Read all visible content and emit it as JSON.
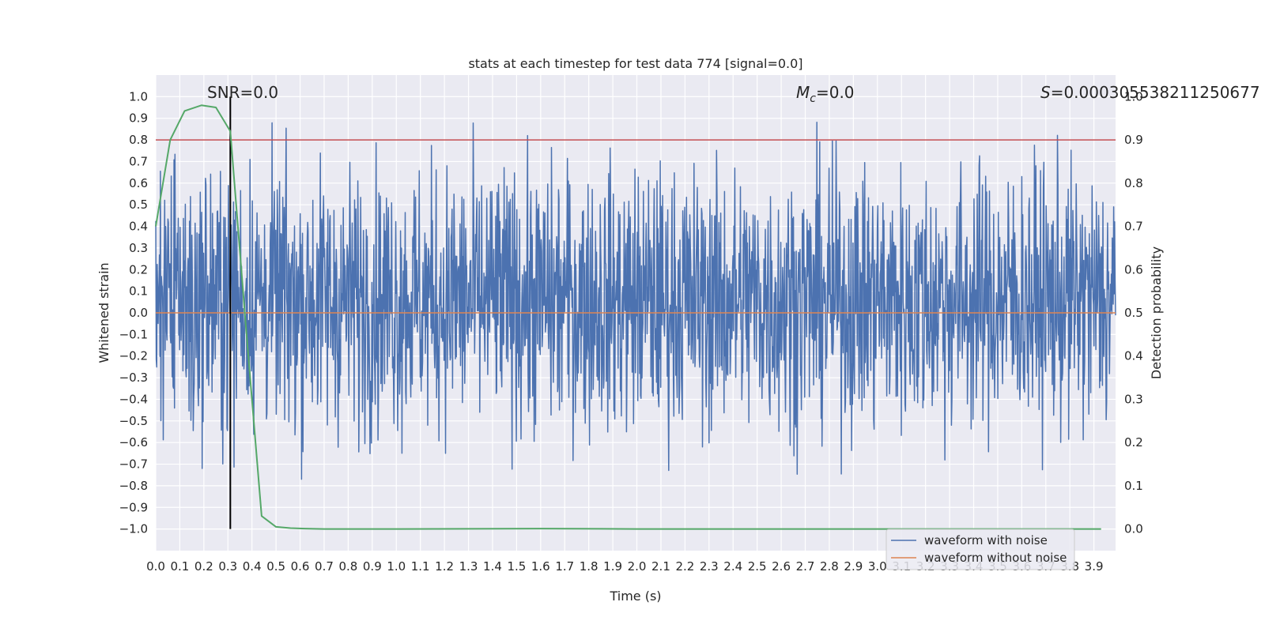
{
  "chart_data": {
    "type": "line",
    "title": "stats at each timestep for test data 774 [signal=0.0]",
    "xlabel": "Time (s)",
    "ylabel": "Whitened strain",
    "y2label": "Detection probability",
    "xlim": [
      0.0,
      3.99
    ],
    "ylim": [
      -1.1,
      1.1
    ],
    "y2lim": [
      -0.05,
      1.05
    ],
    "xticks": [
      "0.0",
      "0.1",
      "0.2",
      "0.3",
      "0.4",
      "0.5",
      "0.6",
      "0.7",
      "0.8",
      "0.9",
      "1.0",
      "1.1",
      "1.2",
      "1.3",
      "1.4",
      "1.5",
      "1.6",
      "1.7",
      "1.8",
      "1.9",
      "2.0",
      "2.1",
      "2.2",
      "2.3",
      "2.4",
      "2.5",
      "2.6",
      "2.7",
      "2.8",
      "2.9",
      "3.0",
      "3.1",
      "3.2",
      "3.3",
      "3.4",
      "3.5",
      "3.6",
      "3.7",
      "3.8",
      "3.9"
    ],
    "yticks": [
      "1.0",
      "0.9",
      "0.8",
      "0.7",
      "0.6",
      "0.5",
      "0.4",
      "0.3",
      "0.2",
      "0.1",
      "0.0",
      "−0.1",
      "−0.2",
      "−0.3",
      "−0.4",
      "−0.5",
      "−0.6",
      "−0.7",
      "−0.8",
      "−0.9",
      "−1.0"
    ],
    "y2ticks": [
      "1.0",
      "0.9",
      "0.8",
      "0.7",
      "0.6",
      "0.5",
      "0.4",
      "0.3",
      "0.2",
      "0.1",
      "0.0"
    ],
    "annotations": {
      "snr": "SNR=0.0",
      "mc_symbol": "M",
      "mc_sub": "c",
      "mc_value": "=0.0",
      "s_symbol": "S",
      "s_value": "=0.000305538211250677"
    },
    "threshold": 0.9,
    "peak_marker_time": 0.31,
    "noise": {
      "description": "dense whitened strain noise, roughly within [-0.9, 1.0]",
      "t_start": 0.0,
      "t_end": 3.99,
      "n_samples": 2048,
      "envelope": [
        -0.9,
        1.0
      ]
    },
    "series": [
      {
        "name": "waveform with noise",
        "color": "#4c72b0"
      },
      {
        "name": "waveform without noise",
        "color": "#dd8452",
        "constant": 0.0
      },
      {
        "name": "detection probability",
        "color": "#55a868",
        "x": [
          0.0,
          0.06,
          0.12,
          0.19,
          0.25,
          0.31,
          0.37,
          0.44,
          0.5,
          0.56,
          0.62,
          0.7,
          1.0,
          1.6,
          2.0,
          3.0,
          3.93
        ],
        "values": [
          0.7,
          0.9,
          0.967,
          0.98,
          0.975,
          0.92,
          0.5,
          0.03,
          0.005,
          0.002,
          0.001,
          0.0,
          0.0,
          0.001,
          0.0,
          0.0,
          0.0
        ]
      }
    ],
    "legend": {
      "position": "lower-right",
      "entries": [
        "waveform with noise",
        "waveform without noise"
      ]
    },
    "colors": {
      "background": "#eaeaf2",
      "grid": "#ffffff",
      "threshold": "#c44e52",
      "marker": "#000000"
    }
  }
}
